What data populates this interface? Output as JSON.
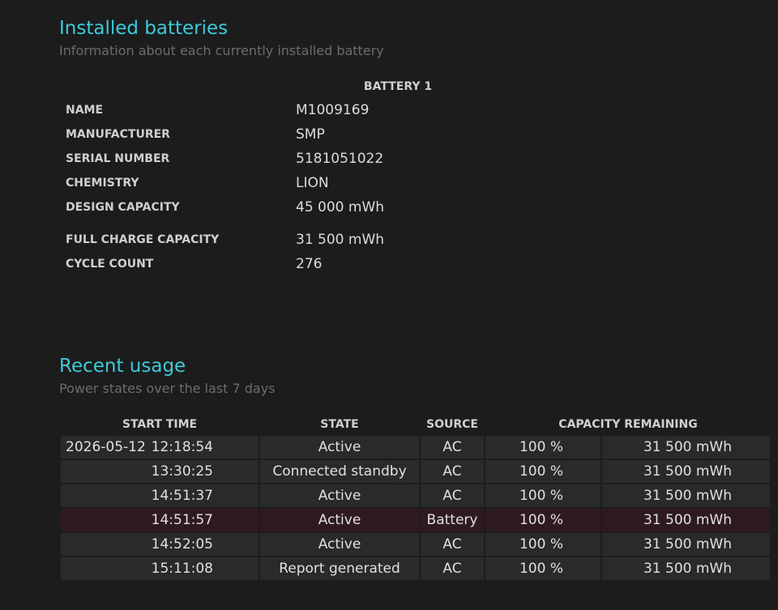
{
  "installed": {
    "title": "Installed batteries",
    "subtitle": "Information about each currently installed battery",
    "header": "BATTERY 1",
    "rows": [
      [
        "NAME",
        "M1009169"
      ],
      [
        "MANUFACTURER",
        "SMP"
      ],
      [
        "SERIAL NUMBER",
        "5181051022"
      ],
      [
        "CHEMISTRY",
        "LION"
      ],
      [
        "DESIGN CAPACITY",
        "45 000 mWh"
      ],
      [
        "FULL CHARGE CAPACITY",
        "31 500 mWh"
      ],
      [
        "CYCLE COUNT",
        "276"
      ]
    ]
  },
  "recent": {
    "title": "Recent usage",
    "subtitle": "Power states over the last 7 days",
    "headers": [
      "START TIME",
      "STATE",
      "SOURCE",
      "CAPACITY REMAINING"
    ],
    "rows": [
      {
        "date": "2026-05-12",
        "time": "12:18:54",
        "state": "Active",
        "source": "AC",
        "percent": "100 %",
        "energy": "31 500 mWh"
      },
      {
        "time": "13:30:25",
        "state": "Connected standby",
        "source": "AC",
        "percent": "100 %",
        "energy": "31 500 mWh"
      },
      {
        "time": "14:51:37",
        "state": "Active",
        "source": "AC",
        "percent": "100 %",
        "energy": "31 500 mWh"
      },
      {
        "time": "14:51:57",
        "state": "Active",
        "source": "Battery",
        "percent": "100 %",
        "energy": "31 500 mWh"
      },
      {
        "time": "14:52:05",
        "state": "Active",
        "source": "AC",
        "percent": "100 %",
        "energy": "31 500 mWh"
      },
      {
        "time": "15:11:08",
        "state": "Report generated",
        "source": "AC",
        "percent": "100 %",
        "energy": "31 500 mWh"
      }
    ]
  }
}
